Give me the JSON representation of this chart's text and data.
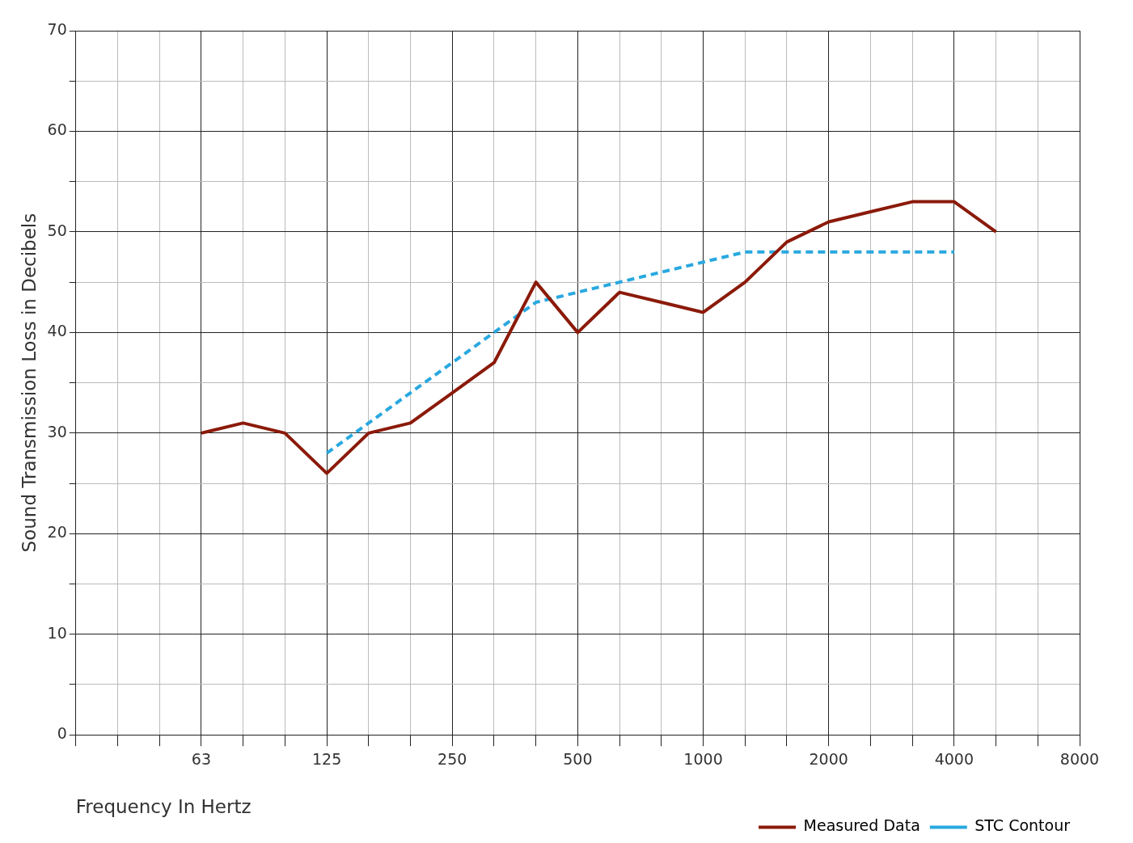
{
  "chart_data": {
    "type": "line",
    "xlabel": "Frequency In Hertz",
    "ylabel": "Sound Transmission Loss in Decibels",
    "categories": [
      null,
      null,
      null,
      "63",
      null,
      null,
      "125",
      null,
      null,
      "250",
      null,
      null,
      "500",
      null,
      null,
      "1000",
      null,
      null,
      "2000",
      null,
      null,
      "4000",
      null,
      null,
      "8000"
    ],
    "ylim": [
      0,
      70
    ],
    "yticks": [
      0,
      {
        "value": 5,
        "label": null
      },
      10,
      {
        "value": 15,
        "label": null
      },
      20,
      {
        "value": 25,
        "label": null
      },
      30,
      {
        "value": 35,
        "label": null
      },
      40,
      {
        "value": 45,
        "label": null
      },
      50,
      {
        "value": 55,
        "label": null
      },
      60,
      {
        "value": 65,
        "label": null
      },
      70
    ],
    "grid": true,
    "legend": "bottom right",
    "marker": "none",
    "series": [
      {
        "name": "Measured Data",
        "color": "#8b1a0a",
        "line_style": "solid",
        "values": [
          null,
          null,
          null,
          30,
          31,
          30,
          26,
          30,
          31,
          34,
          37,
          45,
          40,
          44,
          43,
          42,
          45,
          49,
          51,
          52,
          53,
          53,
          50,
          null,
          null
        ]
      },
      {
        "name": "STC Contour",
        "color": "#29a8e0",
        "line_style": "dashed",
        "values": [
          null,
          null,
          null,
          null,
          null,
          null,
          28,
          31,
          34,
          37,
          40,
          43,
          44,
          45,
          46,
          47,
          48,
          48,
          48,
          48,
          48,
          48,
          null,
          null,
          null
        ]
      }
    ]
  }
}
